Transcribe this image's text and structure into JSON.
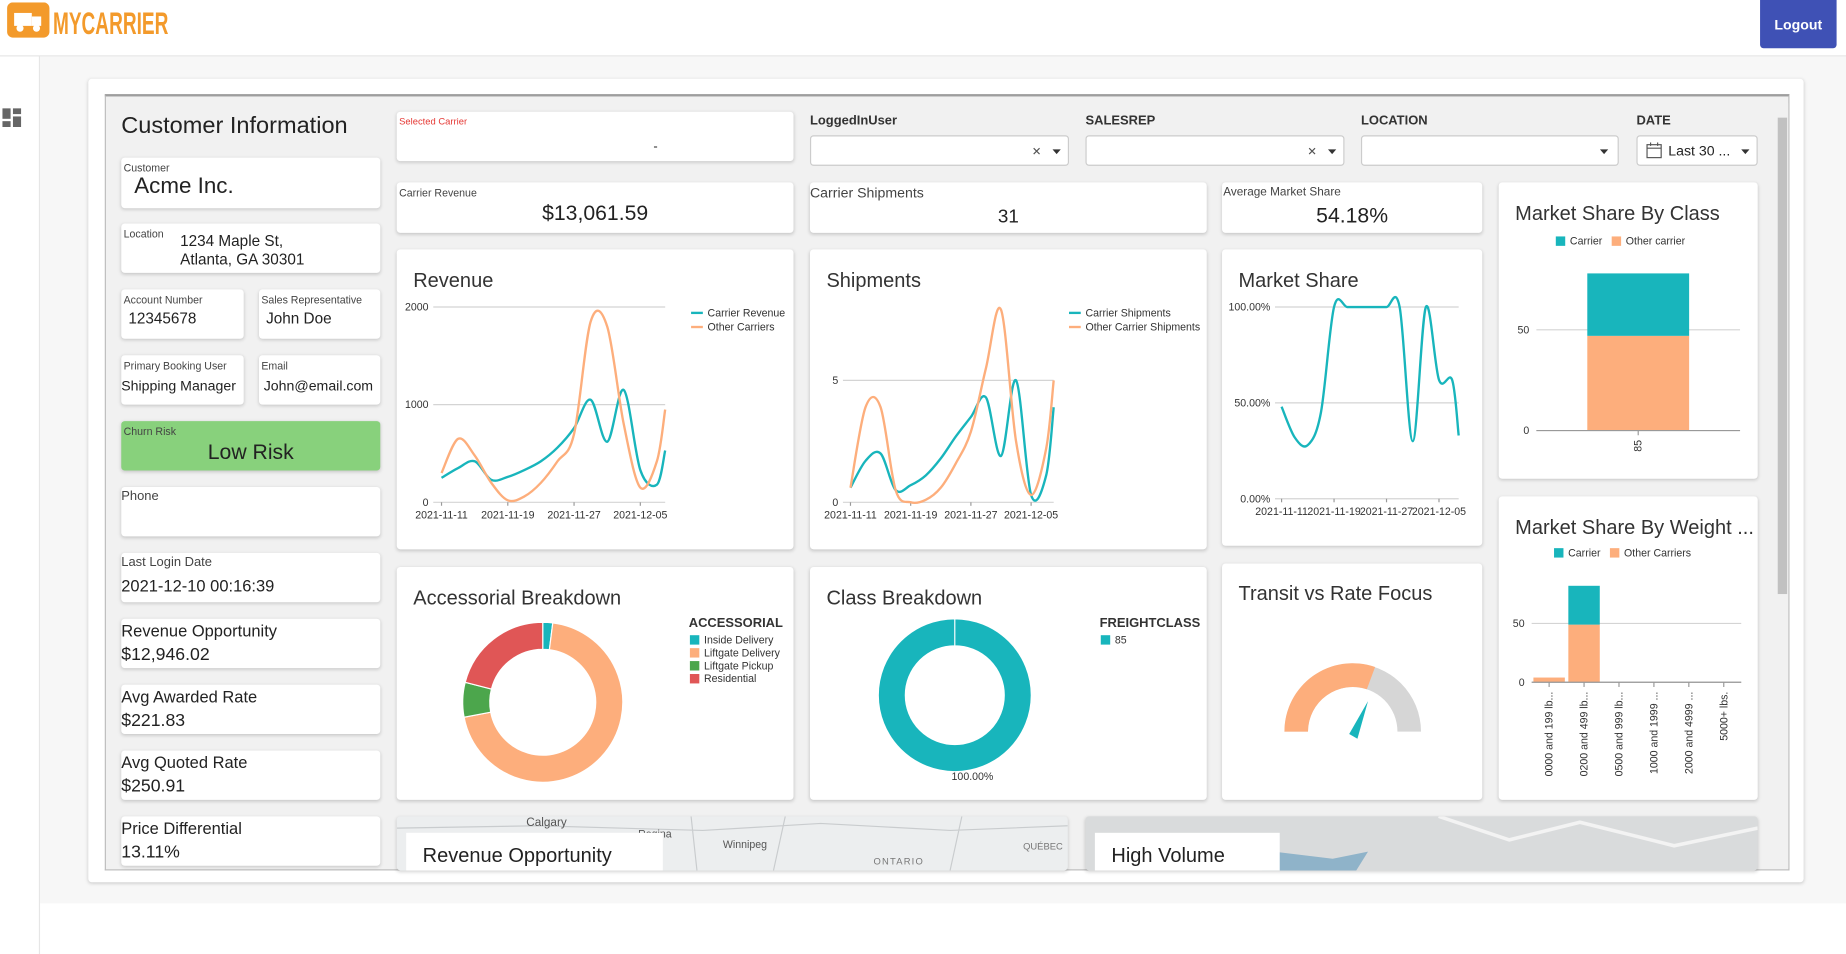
{
  "header": {
    "logo": "MYCARRIER",
    "logout": "Logout"
  },
  "customer": {
    "title": "Customer Information",
    "customer_label": "Customer",
    "customer": "Acme Inc.",
    "location_label": "Location",
    "location": [
      "1234 Maple St,",
      "Atlanta, GA 30301"
    ],
    "account_label": "Account Number",
    "account": "12345678",
    "rep_label": "Sales Representative",
    "rep": "John Doe",
    "booking_label": "Primary Booking User",
    "booking": "Shipping Manager",
    "email_label": "Email",
    "email": "John@email.com",
    "churn_label": "Churn Risk",
    "churn": "Low Risk",
    "phone_label": "Phone",
    "login_label": "Last Login Date",
    "login": "2021-12-10 00:16:39",
    "metrics": [
      {
        "label": "Revenue Opportunity",
        "value": "$12,946.02"
      },
      {
        "label": "Avg Awarded Rate",
        "value": "$221.83"
      },
      {
        "label": "Avg Quoted Rate",
        "value": "$250.91"
      },
      {
        "label": "Price Differential",
        "value": "13.11%"
      }
    ]
  },
  "selected_carrier": {
    "label": "Selected Carrier",
    "value": "-"
  },
  "filters": [
    {
      "label": "LoggedInUser"
    },
    {
      "label": "SALESREP"
    },
    {
      "label": "LOCATION"
    },
    {
      "label": "DATE",
      "value": "Last 30 ..."
    }
  ],
  "kpis": [
    {
      "label": "Carrier Revenue",
      "value": "$13,061.59"
    },
    {
      "label": "Carrier Shipments",
      "value": "31"
    },
    {
      "label": "Average Market Share",
      "value": "54.18%"
    }
  ],
  "transit": {
    "title": "Transit vs Rate Focus"
  },
  "maps": [
    {
      "title": "Revenue Opportunity Lanes",
      "places": [
        "Calgary",
        "Regina",
        "Winnipeg",
        "ONTARIO",
        "QUÉBEC"
      ]
    },
    {
      "title": "High Volume Lanes"
    }
  ],
  "chart_data": [
    {
      "type": "line",
      "title": "Revenue",
      "x": [
        "2021-11-11",
        "2021-11-13",
        "2021-11-15",
        "2021-11-17",
        "2021-11-19",
        "2021-11-21",
        "2021-11-23",
        "2021-11-25",
        "2021-11-27",
        "2021-11-29",
        "2021-12-01",
        "2021-12-03",
        "2021-12-05",
        "2021-12-07",
        "2021-12-08"
      ],
      "xlim": [
        "2021-11-10",
        "2021-12-08"
      ],
      "xticks": [
        "2021-11-11",
        "2021-11-19",
        "2021-11-27",
        "2021-12-05"
      ],
      "ylim": [
        0,
        2000
      ],
      "yticks": [
        0,
        1000,
        2000
      ],
      "grid": true,
      "series": [
        {
          "name": "Carrier Revenue",
          "color": "#18b5bc",
          "values": [
            250,
            350,
            420,
            230,
            260,
            330,
            420,
            560,
            760,
            1050,
            620,
            1150,
            330,
            180,
            530
          ]
        },
        {
          "name": "Other Carriers",
          "color": "#fdae7c",
          "values": [
            300,
            650,
            480,
            200,
            20,
            60,
            200,
            420,
            700,
            1850,
            1800,
            800,
            150,
            420,
            950
          ]
        }
      ]
    },
    {
      "type": "line",
      "title": "Shipments",
      "x": [
        "2021-11-11",
        "2021-11-13",
        "2021-11-15",
        "2021-11-17",
        "2021-11-19",
        "2021-11-21",
        "2021-11-23",
        "2021-11-25",
        "2021-11-27",
        "2021-11-29",
        "2021-12-01",
        "2021-12-03",
        "2021-12-05",
        "2021-12-07",
        "2021-12-08"
      ],
      "xlim": [
        "2021-11-10",
        "2021-12-08"
      ],
      "xticks": [
        "2021-11-11",
        "2021-11-19",
        "2021-11-27",
        "2021-12-05"
      ],
      "ylim": [
        0,
        8.3
      ],
      "yticks": [
        0,
        5
      ],
      "grid": true,
      "series": [
        {
          "name": "Carrier Shipments",
          "color": "#18b5bc",
          "values": [
            0.6,
            1.7,
            2.0,
            0.5,
            0.7,
            1.1,
            1.8,
            2.7,
            3.5,
            4.3,
            1.9,
            5.0,
            0.3,
            1.1,
            3.9
          ]
        },
        {
          "name": "Other Carrier Shipments",
          "color": "#fdae7c",
          "values": [
            0.6,
            3.9,
            3.9,
            0.5,
            0,
            0.1,
            0.6,
            1.6,
            2.9,
            5.5,
            7.9,
            2.5,
            0.3,
            2.2,
            5.0
          ]
        }
      ]
    },
    {
      "type": "line",
      "title": "Market Share",
      "x": [
        "2021-11-11",
        "2021-11-13",
        "2021-11-15",
        "2021-11-17",
        "2021-11-19",
        "2021-11-21",
        "2021-11-23",
        "2021-11-25",
        "2021-11-27",
        "2021-11-29",
        "2021-12-01",
        "2021-12-03",
        "2021-12-05",
        "2021-12-07",
        "2021-12-08"
      ],
      "xlim": [
        "2021-11-10",
        "2021-12-08"
      ],
      "xticks": [
        "2021-11-11",
        "2021-11-19",
        "2021-11-27",
        "2021-12-05"
      ],
      "ylim": [
        0,
        100
      ],
      "yticks": [
        {
          "value": 0,
          "label": "0.00%"
        },
        {
          "value": 50,
          "label": "50.00%"
        },
        {
          "value": 100,
          "label": "100.00%"
        }
      ],
      "grid": true,
      "series": [
        {
          "color": "#18b5bc",
          "values": [
            48,
            32,
            28,
            45,
            100,
            100,
            100,
            100,
            100,
            100,
            30,
            100,
            62,
            62,
            33
          ]
        }
      ]
    },
    {
      "type": "bar",
      "title": "Market Share By Class",
      "categories": [
        "85"
      ],
      "ylim": [
        0,
        80
      ],
      "yticks": [
        0,
        50
      ],
      "grid": true,
      "series": [
        {
          "name": "Carrier",
          "color": "#18b5bc",
          "values": [
            31
          ]
        },
        {
          "name": "Other carrier",
          "color": "#fdae7c",
          "values": [
            47
          ]
        }
      ]
    },
    {
      "type": "bar",
      "title": "Market Share By Weight ...",
      "categories": [
        "0000 and 199 lb...",
        "0200 and 499 lb...",
        "0500 and 999 lb...",
        "1000 and 1999 ...",
        "2000 and 4999 ...",
        "5000+ lbs."
      ],
      "ylim": [
        0,
        90
      ],
      "yticks": [
        0,
        50
      ],
      "grid": true,
      "series": [
        {
          "name": "Carrier",
          "color": "#18b5bc",
          "values": [
            0,
            33,
            0,
            0,
            0,
            0
          ]
        },
        {
          "name": "Other Carriers",
          "color": "#fdae7c",
          "values": [
            4,
            49,
            0,
            0,
            0,
            0
          ]
        }
      ]
    },
    {
      "type": "pie",
      "title": "Accessorial Breakdown",
      "legend_title": "ACCESSORIAL",
      "categories": [
        "Inside Delivery",
        "Liftgate Delivery",
        "Liftgate Pickup",
        "Residential"
      ],
      "values": [
        2,
        70,
        7,
        21
      ],
      "colors": [
        "#18b5bc",
        "#fdae7c",
        "#4ca64c",
        "#e05656"
      ]
    },
    {
      "type": "pie",
      "title": "Class Breakdown",
      "legend_title": "FREIGHTCLASS",
      "categories": [
        "85"
      ],
      "values": [
        100
      ],
      "value_labels": [
        "100.00%"
      ],
      "colors": [
        "#18b5bc"
      ]
    }
  ]
}
